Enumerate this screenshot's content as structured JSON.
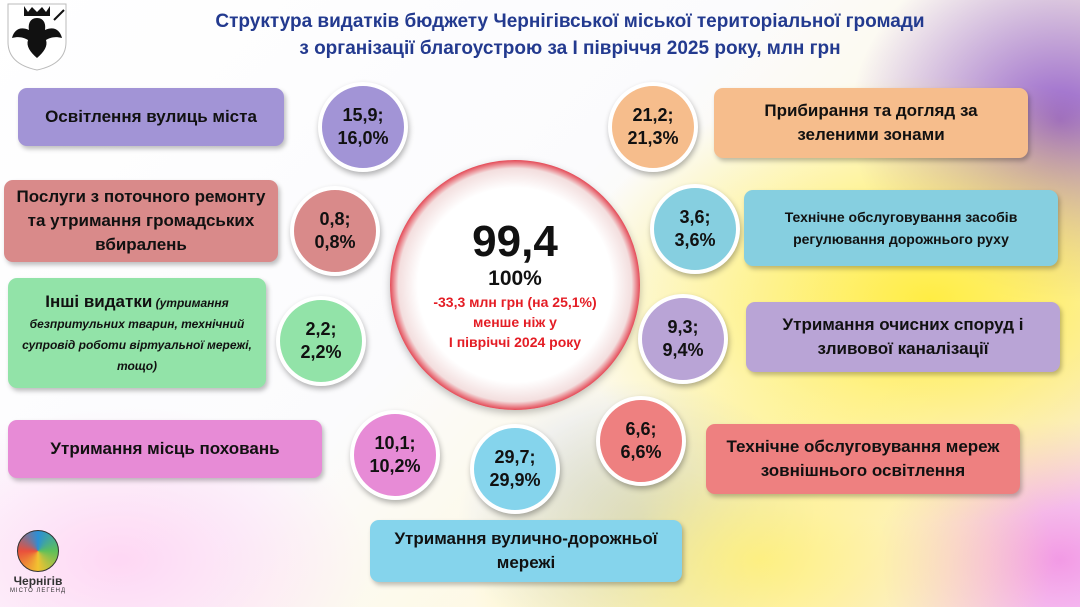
{
  "title": {
    "line1": "Структура видатків бюджету Чернігівської міської територіальної громади",
    "line2": "з організації благоустрою за І півріччя 2025 року, млн грн"
  },
  "center": {
    "total": "99,4",
    "percent": "100%",
    "change_line1": "-33,3 млн грн (на 25,1%)",
    "change_line2": "менше ніж у",
    "change_line3": "І півріччі 2024 року"
  },
  "items": [
    {
      "label": "Освітлення вулиць міста",
      "value": "15,9;",
      "share": "16,0%",
      "color": "#a294d6"
    },
    {
      "label": "Послуги з поточного ремонту та утримання громадських вбиралень",
      "value": "0,8;",
      "share": "0,8%",
      "color": "#d98a8a"
    },
    {
      "label_bold": "Інші видатки",
      "label_note": " (утримання безпритульних тварин, технічний супровід роботи віртуальної мережі, тощо)",
      "value": "2,2;",
      "share": "2,2%",
      "color": "#92e3a8"
    },
    {
      "label": "Утримання місць поховань",
      "value": "10,1;",
      "share": "10,2%",
      "color": "#e78bd6"
    },
    {
      "label": "Утримання вулично-дорожньої мережі",
      "value": "29,7;",
      "share": "29,9%",
      "color": "#85d4ec"
    },
    {
      "label": "Технічне обслуговування мереж зовнішнього освітлення",
      "value": "6,6;",
      "share": "6,6%",
      "color": "#ee8080"
    },
    {
      "label": "Утримання очисних споруд і зливової каналізації",
      "value": "9,3;",
      "share": "9,4%",
      "color": "#b9a4d6"
    },
    {
      "label": "Технічне обслуговування засобів регулювання дорожнього руху",
      "value": "3,6;",
      "share": "3,6%",
      "color": "#86cfe0"
    },
    {
      "label": "Прибирання та догляд за зеленими зонами",
      "value": "21,2;",
      "share": "21,3%",
      "color": "#f6bd8c"
    }
  ],
  "logo": {
    "name": "Чернігів",
    "tagline": "МІСТО ЛЕГЕНД"
  }
}
